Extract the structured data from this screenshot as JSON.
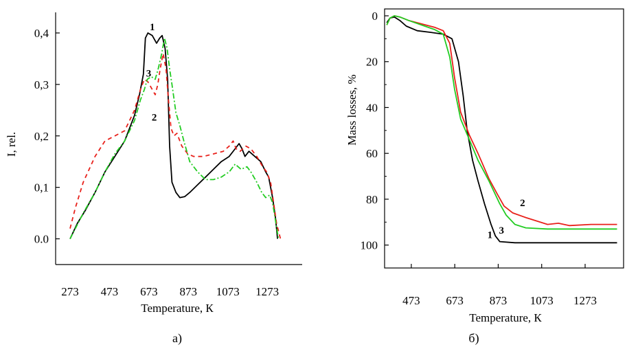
{
  "chart_data": [
    {
      "type": "line",
      "panel_caption": "а)",
      "xlabel": "Temperature, К",
      "ylabel": "I, rel.",
      "xlim": [
        200,
        1450
      ],
      "ylim": [
        -0.05,
        0.44
      ],
      "xticks": [
        273,
        473,
        673,
        873,
        1073,
        1273
      ],
      "xtick_labels": [
        "273",
        "473",
        "673",
        "873",
        "1073",
        "1273"
      ],
      "yticks": [
        0.0,
        0.1,
        0.2,
        0.3,
        0.4
      ],
      "ytick_labels": [
        "0.0",
        "0,1",
        "0,2",
        "0,3",
        "0,4"
      ],
      "series": [
        {
          "name": "1",
          "color": "#000000",
          "dash": "solid",
          "label_at": [
            690,
            0.405
          ],
          "points": [
            [
              273,
              0.0
            ],
            [
              310,
              0.03
            ],
            [
              350,
              0.055
            ],
            [
              400,
              0.09
            ],
            [
              450,
              0.13
            ],
            [
              500,
              0.16
            ],
            [
              550,
              0.19
            ],
            [
              600,
              0.24
            ],
            [
              625,
              0.28
            ],
            [
              645,
              0.32
            ],
            [
              655,
              0.39
            ],
            [
              668,
              0.4
            ],
            [
              690,
              0.395
            ],
            [
              712,
              0.38
            ],
            [
              728,
              0.39
            ],
            [
              740,
              0.395
            ],
            [
              755,
              0.37
            ],
            [
              768,
              0.31
            ],
            [
              778,
              0.18
            ],
            [
              790,
              0.11
            ],
            [
              810,
              0.09
            ],
            [
              830,
              0.08
            ],
            [
              855,
              0.082
            ],
            [
              880,
              0.09
            ],
            [
              920,
              0.105
            ],
            [
              960,
              0.12
            ],
            [
              1000,
              0.135
            ],
            [
              1040,
              0.15
            ],
            [
              1080,
              0.16
            ],
            [
              1110,
              0.175
            ],
            [
              1130,
              0.185
            ],
            [
              1145,
              0.175
            ],
            [
              1160,
              0.16
            ],
            [
              1180,
              0.17
            ],
            [
              1210,
              0.16
            ],
            [
              1240,
              0.15
            ],
            [
              1265,
              0.13
            ],
            [
              1280,
              0.12
            ],
            [
              1300,
              0.08
            ],
            [
              1315,
              0.04
            ],
            [
              1325,
              0.0
            ]
          ]
        },
        {
          "name": "2",
          "color": "#e8201a",
          "dash": "6,5",
          "label_at": [
            700,
            0.23
          ],
          "points": [
            [
              273,
              0.02
            ],
            [
              300,
              0.06
            ],
            [
              340,
              0.11
            ],
            [
              400,
              0.16
            ],
            [
              450,
              0.19
            ],
            [
              500,
              0.2
            ],
            [
              550,
              0.21
            ],
            [
              600,
              0.25
            ],
            [
              630,
              0.29
            ],
            [
              650,
              0.31
            ],
            [
              668,
              0.305
            ],
            [
              690,
              0.29
            ],
            [
              705,
              0.28
            ],
            [
              718,
              0.3
            ],
            [
              730,
              0.33
            ],
            [
              745,
              0.36
            ],
            [
              760,
              0.33
            ],
            [
              772,
              0.27
            ],
            [
              785,
              0.215
            ],
            [
              800,
              0.2
            ],
            [
              815,
              0.205
            ],
            [
              840,
              0.18
            ],
            [
              870,
              0.165
            ],
            [
              900,
              0.16
            ],
            [
              950,
              0.16
            ],
            [
              1000,
              0.165
            ],
            [
              1050,
              0.17
            ],
            [
              1080,
              0.18
            ],
            [
              1100,
              0.19
            ],
            [
              1115,
              0.175
            ],
            [
              1135,
              0.17
            ],
            [
              1165,
              0.18
            ],
            [
              1190,
              0.175
            ],
            [
              1220,
              0.16
            ],
            [
              1250,
              0.14
            ],
            [
              1270,
              0.13
            ],
            [
              1290,
              0.11
            ],
            [
              1305,
              0.07
            ],
            [
              1320,
              0.03
            ],
            [
              1340,
              0.0
            ]
          ]
        },
        {
          "name": "3",
          "color": "#22cc22",
          "dash": "8,3,2,3",
          "label_at": [
            672,
            0.315
          ],
          "points": [
            [
              273,
              0.0
            ],
            [
              300,
              0.02
            ],
            [
              340,
              0.05
            ],
            [
              400,
              0.09
            ],
            [
              450,
              0.13
            ],
            [
              500,
              0.165
            ],
            [
              550,
              0.19
            ],
            [
              600,
              0.23
            ],
            [
              630,
              0.27
            ],
            [
              650,
              0.29
            ],
            [
              665,
              0.31
            ],
            [
              685,
              0.315
            ],
            [
              705,
              0.31
            ],
            [
              720,
              0.33
            ],
            [
              738,
              0.36
            ],
            [
              752,
              0.39
            ],
            [
              765,
              0.37
            ],
            [
              778,
              0.33
            ],
            [
              790,
              0.3
            ],
            [
              810,
              0.245
            ],
            [
              830,
              0.22
            ],
            [
              850,
              0.19
            ],
            [
              880,
              0.15
            ],
            [
              920,
              0.13
            ],
            [
              960,
              0.115
            ],
            [
              1000,
              0.115
            ],
            [
              1040,
              0.12
            ],
            [
              1080,
              0.13
            ],
            [
              1110,
              0.145
            ],
            [
              1140,
              0.135
            ],
            [
              1170,
              0.14
            ],
            [
              1190,
              0.13
            ],
            [
              1220,
              0.11
            ],
            [
              1245,
              0.09
            ],
            [
              1265,
              0.08
            ],
            [
              1285,
              0.085
            ],
            [
              1300,
              0.07
            ],
            [
              1315,
              0.035
            ],
            [
              1330,
              0.0
            ]
          ]
        }
      ]
    },
    {
      "type": "line",
      "panel_caption": "б)",
      "xlabel": "Temperature, К",
      "ylabel": "Mass losses, %",
      "xlim": [
        350,
        1450
      ],
      "ylim": [
        -3,
        110
      ],
      "y_inverted": true,
      "xticks": [
        473,
        673,
        873,
        1073,
        1273
      ],
      "xtick_labels": [
        "473",
        "673",
        "873",
        "1073",
        "1273"
      ],
      "yticks": [
        0,
        20,
        40,
        60,
        80,
        100
      ],
      "ytick_labels": [
        "0",
        "20",
        "40",
        "60",
        "80",
        "100"
      ],
      "series": [
        {
          "name": "1",
          "color": "#000000",
          "label_at": [
            835,
            97
          ],
          "points": [
            [
              360,
              3
            ],
            [
              375,
              1
            ],
            [
              395,
              0.5
            ],
            [
              420,
              2
            ],
            [
              450,
              4.5
            ],
            [
              500,
              6.5
            ],
            [
              560,
              7.2
            ],
            [
              620,
              8
            ],
            [
              660,
              10
            ],
            [
              690,
              20
            ],
            [
              712,
              35
            ],
            [
              730,
              50
            ],
            [
              755,
              63
            ],
            [
              780,
              72
            ],
            [
              810,
              82
            ],
            [
              840,
              91
            ],
            [
              860,
              96
            ],
            [
              880,
              98.5
            ],
            [
              950,
              99
            ],
            [
              1100,
              99
            ],
            [
              1300,
              99
            ],
            [
              1420,
              99
            ]
          ]
        },
        {
          "name": "2",
          "color": "#e8201a",
          "label_at": [
            985,
            83
          ],
          "points": [
            [
              360,
              4
            ],
            [
              375,
              1
            ],
            [
              395,
              0
            ],
            [
              420,
              0.5
            ],
            [
              460,
              2
            ],
            [
              520,
              3.5
            ],
            [
              580,
              5
            ],
            [
              620,
              6.5
            ],
            [
              650,
              12
            ],
            [
              672,
              27
            ],
            [
              700,
              42
            ],
            [
              740,
              52
            ],
            [
              780,
              60
            ],
            [
              830,
              71
            ],
            [
              870,
              78
            ],
            [
              900,
              83
            ],
            [
              940,
              86
            ],
            [
              1000,
              88
            ],
            [
              1050,
              89.5
            ],
            [
              1100,
              91
            ],
            [
              1150,
              90.5
            ],
            [
              1200,
              91.5
            ],
            [
              1300,
              91
            ],
            [
              1420,
              91
            ]
          ]
        },
        {
          "name": "3",
          "color": "#22cc22",
          "label_at": [
            888,
            95
          ],
          "points": [
            [
              360,
              4
            ],
            [
              375,
              1
            ],
            [
              395,
              0
            ],
            [
              420,
              0.5
            ],
            [
              460,
              2
            ],
            [
              520,
              4
            ],
            [
              580,
              6
            ],
            [
              620,
              8
            ],
            [
              650,
              18
            ],
            [
              672,
              32
            ],
            [
              700,
              45
            ],
            [
              740,
              54
            ],
            [
              780,
              63
            ],
            [
              830,
              72
            ],
            [
              880,
              82
            ],
            [
              910,
              87
            ],
            [
              950,
              91
            ],
            [
              1000,
              92.5
            ],
            [
              1100,
              93
            ],
            [
              1250,
              93
            ],
            [
              1420,
              93
            ]
          ]
        }
      ]
    }
  ]
}
